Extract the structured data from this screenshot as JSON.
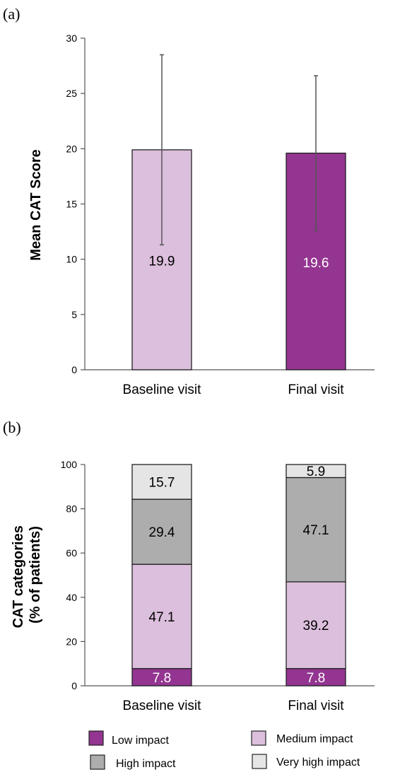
{
  "chart_data": [
    {
      "panel": "(a)",
      "type": "bar",
      "ylabel": "Mean CAT Score",
      "ylim": [
        0,
        30
      ],
      "yticks": [
        0,
        5,
        10,
        15,
        20,
        25,
        30
      ],
      "categories": [
        "Baseline visit",
        "Final visit"
      ],
      "values": [
        19.9,
        19.6
      ],
      "value_labels": [
        "19.9",
        "19.6"
      ],
      "error_low": [
        11.3,
        12.6
      ],
      "error_high": [
        28.5,
        26.6
      ],
      "colors": [
        "#dcbfdc",
        "#933591"
      ],
      "label_colors": [
        "#000000",
        "#ffffff"
      ]
    },
    {
      "panel": "(b)",
      "type": "bar",
      "stacked": true,
      "ylabel": "CAT categories\n(% of patients)",
      "ylim": [
        0,
        100
      ],
      "yticks": [
        0,
        20,
        40,
        60,
        80,
        100
      ],
      "categories": [
        "Baseline visit",
        "Final visit"
      ],
      "series": [
        {
          "name": "Low impact",
          "values": [
            7.8,
            7.8
          ],
          "labels": [
            "7.8",
            "7.8"
          ],
          "color": "#933591",
          "label_color": "#ffffff"
        },
        {
          "name": "Medium impact",
          "values": [
            47.1,
            39.2
          ],
          "labels": [
            "47.1",
            "39.2"
          ],
          "color": "#dcbfdc",
          "label_color": "#000000"
        },
        {
          "name": "High impact",
          "values": [
            29.4,
            47.1
          ],
          "labels": [
            "29.4",
            "47.1"
          ],
          "color": "#adadad",
          "label_color": "#000000"
        },
        {
          "name": "Very high impact",
          "values": [
            15.7,
            5.9
          ],
          "labels": [
            "15.7",
            "5.9"
          ],
          "color": "#e5e5e5",
          "label_color": "#000000"
        }
      ],
      "legend_position": "bottom"
    }
  ]
}
